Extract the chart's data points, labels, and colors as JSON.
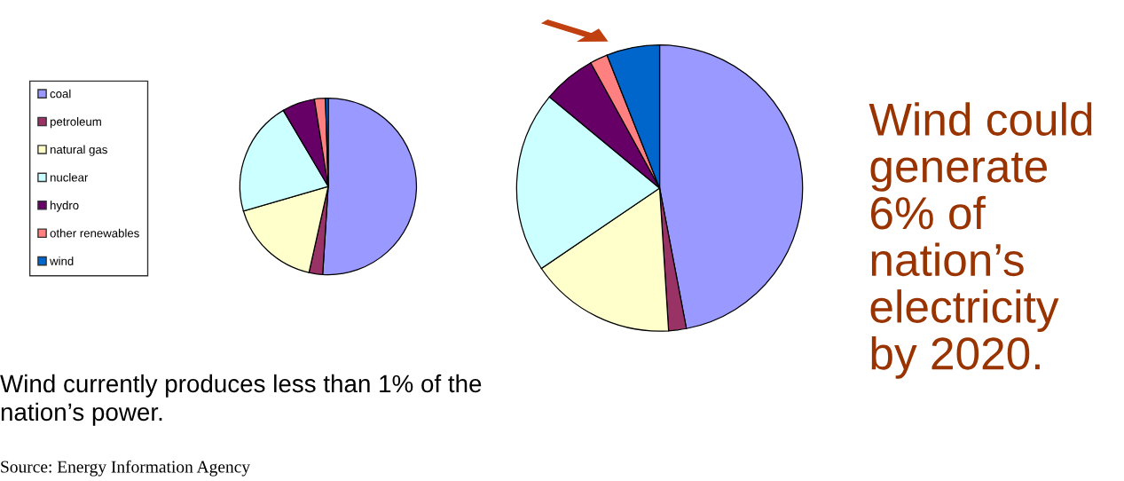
{
  "chart_data": [
    {
      "type": "pie",
      "categories": [
        "coal",
        "petroleum",
        "natural gas",
        "nuclear",
        "hydro",
        "other renewables",
        "wind"
      ],
      "values": [
        51,
        2.5,
        17,
        21,
        6,
        2,
        0.5
      ],
      "colors": [
        "#9999ff",
        "#993366",
        "#ffffcc",
        "#ccffff",
        "#660066",
        "#ff8080",
        "#0066cc"
      ],
      "legend": "left",
      "annotations": [
        "Wind currently produces less than 1% of the nation’s power.",
        "Source: Energy Information Agency"
      ]
    },
    {
      "type": "pie",
      "values": [
        47,
        2,
        16.5,
        20.5,
        6,
        2,
        6
      ],
      "colors": [
        "#9999ff",
        "#993366",
        "#ffffcc",
        "#ccffff",
        "#660066",
        "#ff8080",
        "#0066cc"
      ],
      "annotations": [
        "Wind could generate 6% of nation’s electricity by 2020."
      ]
    }
  ]
}
